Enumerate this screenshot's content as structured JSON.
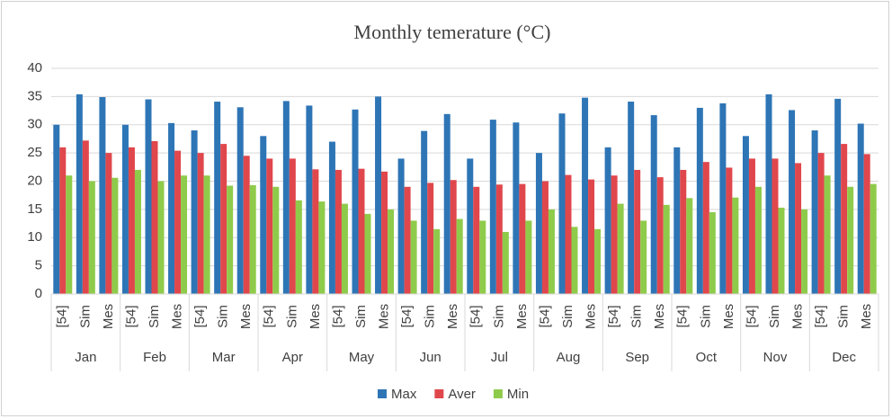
{
  "chart_data": {
    "type": "bar",
    "title": "Monthly temerature (°C)",
    "categories": [
      "[54]",
      "Sim",
      "Mes",
      "[54]",
      "Sim",
      "Mes",
      "[54]",
      "Sim",
      "Mes",
      "[54]",
      "Sim",
      "Mes",
      "[54]",
      "Sim",
      "Mes",
      "[54]",
      "Sim",
      "Mes",
      "[54]",
      "Sim",
      "Mes",
      "[54]",
      "Sim",
      "Mes",
      "[54]",
      "Sim",
      "Mes",
      "[54]",
      "Sim",
      "Mes",
      "[54]",
      "Sim",
      "Mes",
      "[54]",
      "Sim",
      "Mes"
    ],
    "category_groups": [
      "Jan",
      "Feb",
      "Mar",
      "Apr",
      "May",
      "Jun",
      "Jul",
      "Aug",
      "Sep",
      "Oct",
      "Nov",
      "Dec"
    ],
    "series": [
      {
        "name": "Max",
        "color": "#2e75b6",
        "values": [
          30,
          35.4,
          34.9,
          30,
          34.5,
          30.3,
          29,
          34.1,
          33.1,
          28,
          34.2,
          33.4,
          27,
          32.7,
          35,
          24,
          28.9,
          31.9,
          24,
          30.9,
          30.4,
          25,
          32,
          34.8,
          26,
          34.1,
          31.7,
          26,
          33,
          33.8,
          28,
          35.4,
          32.6,
          29,
          34.6,
          30.2
        ]
      },
      {
        "name": "Aver",
        "color": "#e0474c",
        "values": [
          26,
          27.2,
          25,
          26,
          27.1,
          25.4,
          25,
          26.6,
          24.5,
          24,
          24,
          22.1,
          22,
          22.2,
          21.7,
          19,
          19.7,
          20.2,
          19,
          19.4,
          19.5,
          20,
          21.1,
          20.3,
          21,
          22,
          20.7,
          22,
          23.4,
          22.4,
          24,
          24,
          23.2,
          25,
          26.6,
          24.8
        ]
      },
      {
        "name": "Min",
        "color": "#8fcb4b",
        "values": [
          21,
          20,
          20.6,
          22,
          20,
          21,
          21,
          19.2,
          19.3,
          19,
          16.6,
          16.4,
          16,
          14.2,
          15,
          13,
          11.5,
          13.3,
          13,
          11,
          13,
          15,
          11.9,
          11.5,
          16,
          13,
          15.8,
          17,
          14.5,
          17.1,
          19,
          15.3,
          15,
          21,
          19,
          19.5
        ]
      }
    ],
    "ylim": [
      0,
      40
    ],
    "yticks": [
      0,
      5,
      10,
      15,
      20,
      25,
      30,
      35,
      40
    ],
    "grid": true,
    "legend": "bottom"
  }
}
